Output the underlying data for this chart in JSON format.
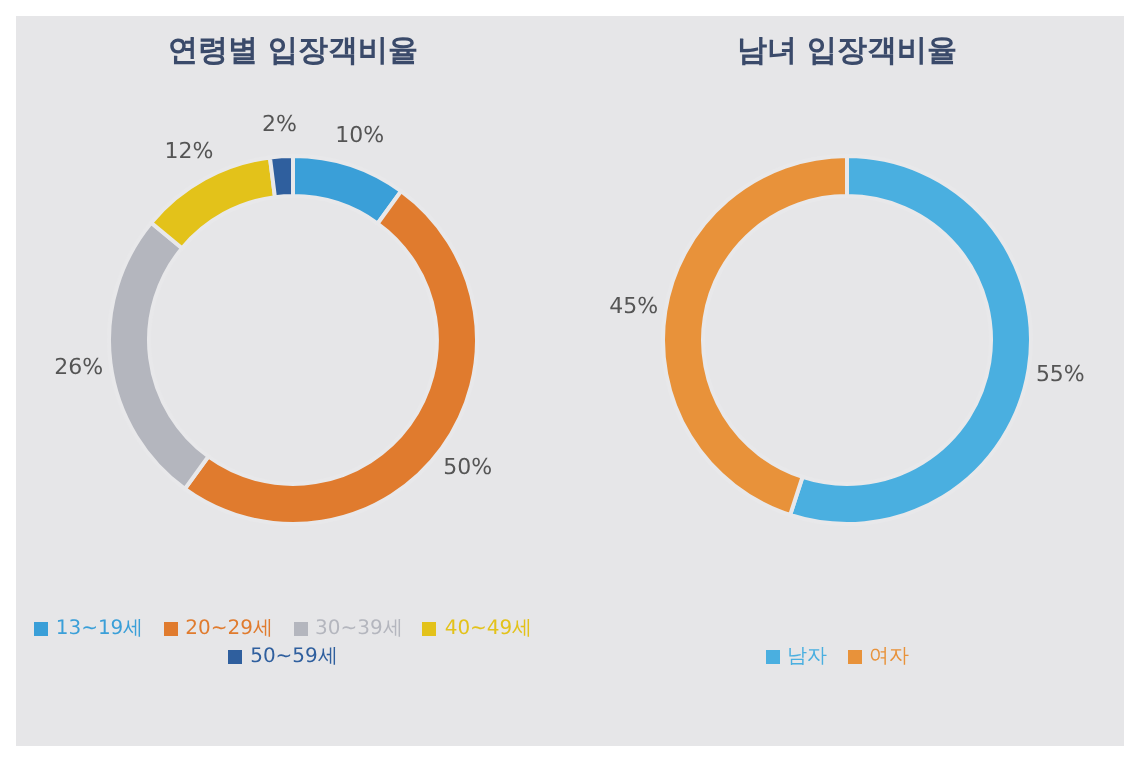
{
  "chart_data": [
    {
      "type": "donut",
      "title": "연령별 입장객비율",
      "categories": [
        "13~19세",
        "20~29세",
        "30~39세",
        "40~49세",
        "50~59세"
      ],
      "values": [
        10,
        50,
        26,
        12,
        2
      ],
      "colors": [
        "#3a9fd8",
        "#e07b2e",
        "#b4b6be",
        "#e3c21a",
        "#2f5f9e"
      ],
      "value_labels": [
        "10%",
        "50%",
        "26%",
        "12%",
        "2%"
      ],
      "legend": "bottom"
    },
    {
      "type": "donut",
      "title": "남녀 입장객비율",
      "categories": [
        "남자",
        "여자"
      ],
      "values": [
        55,
        45
      ],
      "colors": [
        "#4aafe0",
        "#e8923a"
      ],
      "value_labels": [
        "55%",
        "45%"
      ],
      "legend": "bottom"
    }
  ]
}
